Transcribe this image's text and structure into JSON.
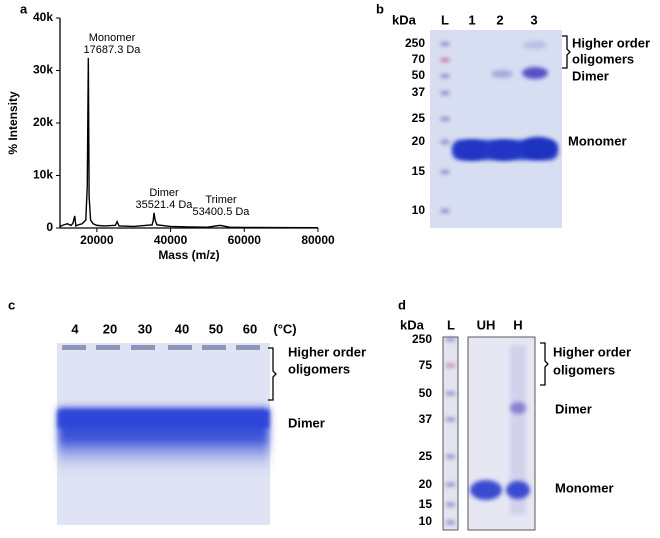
{
  "chart_data": {
    "type": "line",
    "panel": "a",
    "color": "#000000",
    "xlabel": "Mass (m/z)",
    "ylabel": "% Intensity",
    "x": [
      10000,
      11000,
      12000,
      13000,
      13500,
      14000,
      14300,
      15000,
      16000,
      17000,
      17400,
      17687.3,
      17900,
      18300,
      19000,
      20000,
      22000,
      25000,
      25500,
      26000,
      30000,
      35000,
      35300,
      35521.4,
      35800,
      36300,
      40000,
      45000,
      50000,
      53400.5,
      56000,
      60000,
      70000,
      80000
    ],
    "values": [
      300,
      600,
      800,
      500,
      900,
      2300,
      400,
      600,
      800,
      1500,
      8000,
      32400,
      6000,
      1500,
      800,
      500,
      400,
      500,
      1200,
      400,
      300,
      600,
      1500,
      2900,
      1500,
      600,
      300,
      200,
      150,
      500,
      150,
      100,
      80,
      60
    ],
    "xlim": [
      10000,
      80000
    ],
    "ylim": [
      0,
      40000
    ],
    "xticks": [
      20000,
      40000,
      60000,
      80000
    ],
    "yticks": [
      0,
      {
        "value": 10000,
        "label": "10k"
      },
      {
        "value": 20000,
        "label": "20k"
      },
      {
        "value": 30000,
        "label": "30k"
      },
      {
        "value": 40000,
        "label": "40k"
      }
    ],
    "annotations": [
      {
        "label": "Monomer",
        "detail": "17687.3 Da"
      },
      {
        "label": "Dimer",
        "detail": "35521.4 Da"
      },
      {
        "label": "Trimer",
        "detail": "53400.5 Da"
      }
    ]
  },
  "panel_b": {
    "panel": "b",
    "unit": "kDa",
    "lanes": [
      "L",
      "1",
      "2",
      "3"
    ],
    "markers": [
      250,
      70,
      50,
      37,
      25,
      20,
      15,
      10
    ],
    "labels": [
      "Higher order",
      "oligomers",
      "Dimer",
      "Monomer"
    ]
  },
  "panel_c": {
    "panel": "c",
    "lanes": [
      4,
      20,
      30,
      40,
      50,
      60
    ],
    "unit": "(°C)",
    "labels": [
      "Higher order",
      "oligomers",
      "Dimer"
    ]
  },
  "panel_d": {
    "panel": "d",
    "unit": "kDa",
    "lanes": [
      "L",
      "UH",
      "H"
    ],
    "markers": [
      250,
      75,
      50,
      37,
      25,
      20,
      15,
      10
    ],
    "labels": [
      "Higher order",
      "oligomers",
      "Dimer",
      "Monomer"
    ]
  }
}
